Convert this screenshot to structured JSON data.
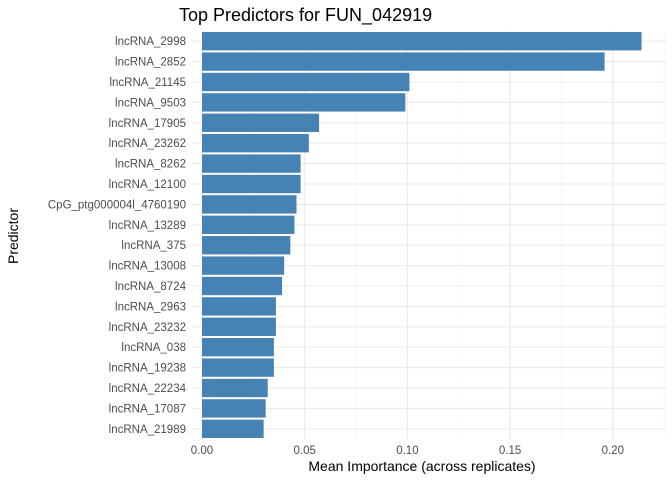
{
  "chart_data": {
    "type": "bar",
    "orientation": "horizontal",
    "title": "Top Predictors for FUN_042919",
    "xlabel": "Mean Importance (across replicates)",
    "ylabel": "Predictor",
    "xlim": [
      0,
      0.225
    ],
    "x_ticks": [
      "0.00",
      "0.05",
      "0.10",
      "0.15",
      "0.20"
    ],
    "grid": true,
    "bar_color": "#4682B4",
    "categories": [
      "lncRNA_2998",
      "lncRNA_2852",
      "lncRNA_21145",
      "lncRNA_9503",
      "lncRNA_17905",
      "lncRNA_23262",
      "lncRNA_8262",
      "lncRNA_12100",
      "CpG_ptg000004l_4760190",
      "lncRNA_13289",
      "lncRNA_375",
      "lncRNA_13008",
      "lncRNA_8724",
      "lncRNA_2963",
      "lncRNA_23232",
      "lncRNA_038",
      "lncRNA_19238",
      "lncRNA_22234",
      "lncRNA_17087",
      "lncRNA_21989"
    ],
    "values": [
      0.214,
      0.196,
      0.101,
      0.099,
      0.057,
      0.052,
      0.048,
      0.048,
      0.046,
      0.045,
      0.043,
      0.04,
      0.039,
      0.036,
      0.036,
      0.035,
      0.035,
      0.032,
      0.031,
      0.03
    ]
  }
}
